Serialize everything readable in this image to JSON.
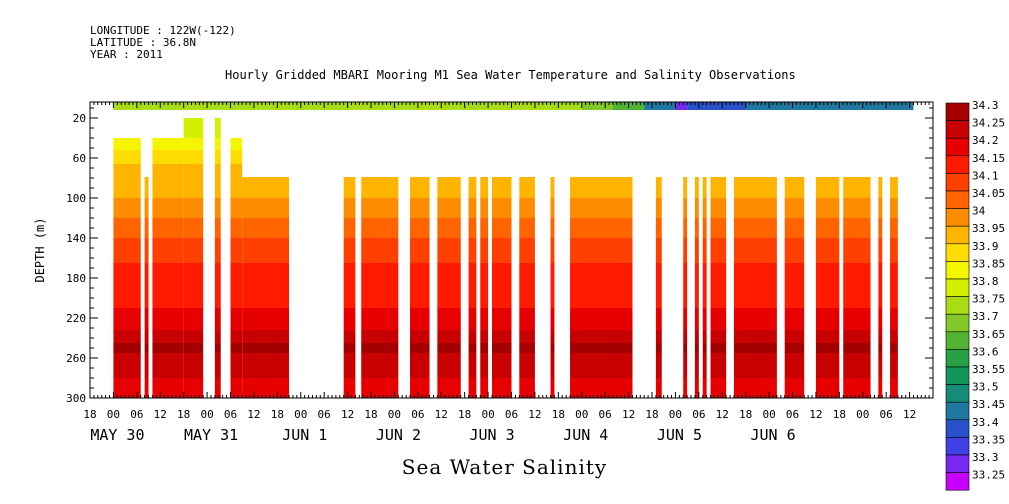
{
  "header": {
    "longitude": "LONGITUDE : 122W(-122)",
    "latitude": "LATITUDE : 36.8N",
    "year": "YEAR : 2011"
  },
  "chart_data": {
    "type": "heatmap",
    "title": "Hourly Gridded MBARI Mooring M1 Sea Water Temperature and Salinity Observations",
    "xlabel": "Sea Water Salinity",
    "ylabel": "DEPTH (m)",
    "ylim": [
      300,
      0
    ],
    "yticks": [
      20,
      60,
      100,
      140,
      180,
      220,
      260,
      300
    ],
    "xlim_hours": [
      -6,
      210
    ],
    "x_hour_ticks": [
      "18",
      "00",
      "06",
      "12",
      "18",
      "00",
      "06",
      "12",
      "18",
      "00",
      "06",
      "12",
      "18",
      "00",
      "06",
      "12",
      "18",
      "00",
      "06",
      "12",
      "18",
      "00",
      "06",
      "12",
      "18",
      "00",
      "06",
      "12",
      "18",
      "00",
      "06",
      "12",
      "18",
      "00",
      "06",
      "12"
    ],
    "x_day_labels": [
      {
        "label": "MAY 30",
        "hour": 0
      },
      {
        "label": "MAY 31",
        "hour": 24
      },
      {
        "label": "JUN  1",
        "hour": 48
      },
      {
        "label": "JUN  2",
        "hour": 72
      },
      {
        "label": "JUN  3",
        "hour": 96
      },
      {
        "label": "JUN  4",
        "hour": 120
      },
      {
        "label": "JUN  5",
        "hour": 144
      },
      {
        "label": "JUN  6",
        "hour": 168
      }
    ],
    "colorbar": {
      "levels": [
        "34.3",
        "34.25",
        "34.2",
        "34.15",
        "34.1",
        "34.05",
        "34",
        "33.95",
        "33.9",
        "33.85",
        "33.8",
        "33.75",
        "33.7",
        "33.65",
        "33.6",
        "33.55",
        "33.5",
        "33.45",
        "33.4",
        "33.35",
        "33.3",
        "33.25"
      ],
      "colors": [
        "#a50000",
        "#c80000",
        "#e60000",
        "#ff1a00",
        "#ff4000",
        "#ff6400",
        "#ff8c00",
        "#ffb400",
        "#ffdc00",
        "#f5f500",
        "#d2f000",
        "#aadc14",
        "#82c828",
        "#50b432",
        "#28a046",
        "#14965a",
        "#148c78",
        "#1e78a0",
        "#2850c8",
        "#4040e6",
        "#7828f0",
        "#c800ff"
      ]
    },
    "surface_bins": [
      {
        "start": 0,
        "end": 120,
        "level": "33.75"
      },
      {
        "start": 120,
        "end": 128,
        "level": "33.7"
      },
      {
        "start": 128,
        "end": 136,
        "level": "33.65"
      },
      {
        "start": 136,
        "end": 144,
        "level": "33.45"
      },
      {
        "start": 144,
        "end": 147,
        "level": "33.3"
      },
      {
        "start": 147,
        "end": 162,
        "level": "33.4"
      },
      {
        "start": 162,
        "end": 205,
        "level": "33.45"
      }
    ],
    "segments": [
      {
        "start": 0,
        "end": 7,
        "top": 40,
        "surface_level": "33.85"
      },
      {
        "start": 8,
        "end": 9,
        "top": 79,
        "surface_level": ""
      },
      {
        "start": 10,
        "end": 18,
        "top": 40,
        "surface_level": "33.85"
      },
      {
        "start": 18,
        "end": 23,
        "top": 20,
        "surface_level": "33.8"
      },
      {
        "start": 26,
        "end": 27.5,
        "top": 20,
        "surface_level": "33.8"
      },
      {
        "start": 30,
        "end": 33,
        "top": 40,
        "surface_level": "33.85"
      },
      {
        "start": 33,
        "end": 45,
        "top": 79,
        "surface_level": ""
      },
      {
        "start": 59,
        "end": 62,
        "top": 79,
        "surface_level": ""
      },
      {
        "start": 63.5,
        "end": 73,
        "top": 79,
        "surface_level": ""
      },
      {
        "start": 76,
        "end": 81,
        "top": 79,
        "surface_level": ""
      },
      {
        "start": 83,
        "end": 89,
        "top": 79,
        "surface_level": ""
      },
      {
        "start": 91,
        "end": 93,
        "top": 79,
        "surface_level": ""
      },
      {
        "start": 94,
        "end": 96,
        "top": 79,
        "surface_level": ""
      },
      {
        "start": 97,
        "end": 102,
        "top": 79,
        "surface_level": ""
      },
      {
        "start": 104,
        "end": 108,
        "top": 79,
        "surface_level": ""
      },
      {
        "start": 112,
        "end": 113,
        "top": 79,
        "surface_level": ""
      },
      {
        "start": 117,
        "end": 133,
        "top": 79,
        "surface_level": ""
      },
      {
        "start": 139,
        "end": 140.5,
        "top": 79,
        "surface_level": ""
      },
      {
        "start": 146,
        "end": 147,
        "top": 79,
        "surface_level": ""
      },
      {
        "start": 149,
        "end": 150,
        "top": 79,
        "surface_level": ""
      },
      {
        "start": 151,
        "end": 152,
        "top": 79,
        "surface_level": ""
      },
      {
        "start": 153,
        "end": 157,
        "top": 79,
        "surface_level": ""
      },
      {
        "start": 159,
        "end": 170,
        "top": 79,
        "surface_level": ""
      },
      {
        "start": 172,
        "end": 177,
        "top": 79,
        "surface_level": ""
      },
      {
        "start": 180,
        "end": 186,
        "top": 79,
        "surface_level": ""
      },
      {
        "start": 187,
        "end": 194,
        "top": 79,
        "surface_level": ""
      },
      {
        "start": 196,
        "end": 197,
        "top": 79,
        "surface_level": ""
      },
      {
        "start": 199,
        "end": 201,
        "top": 79,
        "surface_level": ""
      }
    ],
    "depth_profile": [
      {
        "top": 79,
        "bottom": 100,
        "level": "33.95"
      },
      {
        "top": 100,
        "bottom": 120,
        "level": "34"
      },
      {
        "top": 120,
        "bottom": 140,
        "level": "34.05"
      },
      {
        "top": 140,
        "bottom": 165,
        "level": "34.1"
      },
      {
        "top": 165,
        "bottom": 210,
        "level": "34.15"
      },
      {
        "top": 210,
        "bottom": 232,
        "level": "34.2"
      },
      {
        "top": 232,
        "bottom": 245,
        "level": "34.25"
      },
      {
        "top": 245,
        "bottom": 255,
        "level": "34.3"
      },
      {
        "top": 255,
        "bottom": 280,
        "level": "34.25"
      },
      {
        "top": 280,
        "bottom": 300,
        "level": "34.2"
      }
    ],
    "upper_profile": [
      {
        "top": 40,
        "bottom": 52,
        "level": "33.85"
      },
      {
        "top": 52,
        "bottom": 66,
        "level": "33.9"
      },
      {
        "top": 66,
        "bottom": 79,
        "level": "33.95"
      }
    ]
  }
}
